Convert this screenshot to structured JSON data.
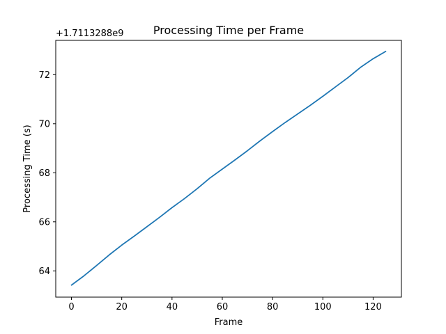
{
  "chart_data": {
    "type": "line",
    "title": "Processing Time per Frame",
    "xlabel": "Frame",
    "ylabel": "Processing Time (s)",
    "offset_label": "+1.7113288e9",
    "xlim": [
      -6.25,
      131.25
    ],
    "ylim": [
      62.93,
      73.4
    ],
    "xticks": [
      0,
      20,
      40,
      60,
      80,
      100,
      120
    ],
    "yticks": [
      64,
      66,
      68,
      70,
      72
    ],
    "grid": false,
    "line_color": "#1f77b4",
    "series": [
      {
        "x": [
          0,
          5,
          10,
          15,
          20,
          25,
          30,
          35,
          40,
          45,
          50,
          55,
          60,
          65,
          70,
          75,
          80,
          85,
          90,
          95,
          100,
          105,
          110,
          115,
          120,
          125
        ],
        "y": [
          63.42,
          63.8,
          64.22,
          64.65,
          65.05,
          65.42,
          65.8,
          66.18,
          66.58,
          66.95,
          67.35,
          67.78,
          68.15,
          68.52,
          68.9,
          69.3,
          69.68,
          70.05,
          70.4,
          70.75,
          71.12,
          71.5,
          71.88,
          72.3,
          72.65,
          72.95
        ]
      }
    ]
  }
}
